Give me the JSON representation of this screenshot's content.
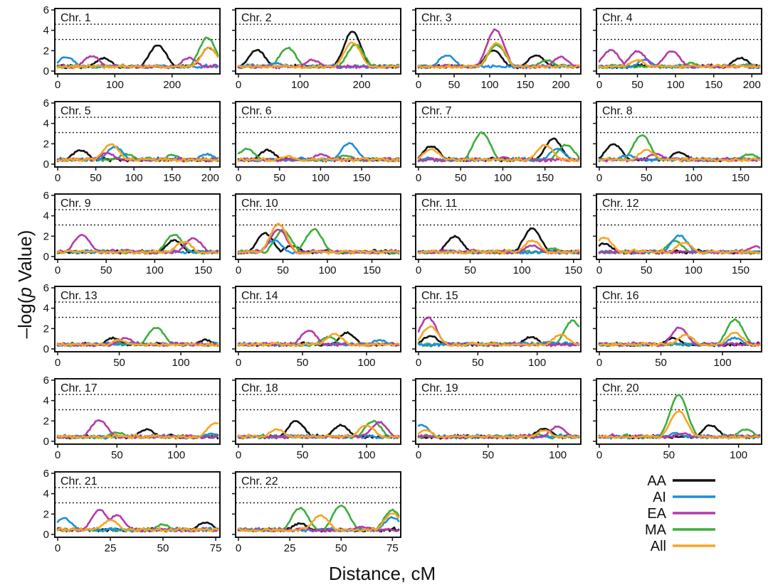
{
  "chart_data": {
    "type": "line",
    "xlabel": "Distance, cM",
    "ylabel_prefix": "–log(",
    "ylabel_italic": "p",
    "ylabel_suffix": " Value)",
    "yticks": [
      0,
      2,
      4,
      6
    ],
    "ylim": [
      0,
      6
    ],
    "thresholds": [
      3.1,
      4.6
    ],
    "legend_position": "bottom-right",
    "series_meta": [
      {
        "name": "AA",
        "color": "#111111"
      },
      {
        "name": "AI",
        "color": "#1e8fd8"
      },
      {
        "name": "EA",
        "color": "#b43aaa"
      },
      {
        "name": "MA",
        "color": "#3cae3c"
      },
      {
        "name": "All",
        "color": "#f5a623"
      }
    ],
    "panels": [
      {
        "title": "Chr. 1",
        "xmax": 280,
        "xticks": [
          0,
          100,
          200
        ],
        "peaks": {
          "AA": [
            [
              80,
              1.2
            ],
            [
              175,
              2.5
            ],
            [
              265,
              2.2
            ]
          ],
          "AI": [
            [
              15,
              1.3
            ]
          ],
          "EA": [
            [
              60,
              1.4
            ],
            [
              230,
              1.2
            ]
          ],
          "MA": [
            [
              262,
              3.2
            ]
          ],
          "All": [
            [
              265,
              2.2
            ]
          ]
        }
      },
      {
        "title": "Chr. 2",
        "xmax": 260,
        "xticks": [
          0,
          100,
          200
        ],
        "peaks": {
          "AA": [
            [
              30,
              2.0
            ],
            [
              185,
              3.8
            ]
          ],
          "AI": [
            [
              60,
              0.7
            ]
          ],
          "EA": [
            [
              120,
              1.0
            ]
          ],
          "MA": [
            [
              80,
              2.2
            ],
            [
              190,
              2.5
            ]
          ],
          "All": [
            [
              185,
              2.7
            ]
          ]
        }
      },
      {
        "title": "Chr. 3",
        "xmax": 225,
        "xticks": [
          0,
          50,
          100,
          150,
          200
        ],
        "peaks": {
          "AA": [
            [
              105,
              2.0
            ],
            [
              165,
              1.5
            ]
          ],
          "AI": [
            [
              40,
              1.5
            ]
          ],
          "EA": [
            [
              108,
              4.0
            ],
            [
              200,
              1.3
            ]
          ],
          "MA": [
            [
              110,
              2.5
            ],
            [
              180,
              1.0
            ]
          ],
          "All": [
            [
              110,
              2.7
            ]
          ]
        }
      },
      {
        "title": "Chr. 4",
        "xmax": 210,
        "xticks": [
          0,
          50,
          100,
          150,
          200
        ],
        "peaks": {
          "AA": [
            [
              185,
              1.2
            ]
          ],
          "AI": [
            [
              60,
              1.0
            ]
          ],
          "EA": [
            [
              15,
              2.0
            ],
            [
              50,
              1.9
            ],
            [
              95,
              1.9
            ]
          ],
          "MA": [
            [
              120,
              0.7
            ]
          ],
          "All": [
            [
              50,
              1.0
            ]
          ]
        }
      },
      {
        "title": "Chr. 5",
        "xmax": 210,
        "xticks": [
          0,
          50,
          100,
          150,
          200
        ],
        "peaks": {
          "AA": [
            [
              30,
              1.3
            ]
          ],
          "AI": [
            [
              75,
              1.6
            ],
            [
              195,
              0.9
            ]
          ],
          "EA": [
            [
              65,
              1.0
            ]
          ],
          "MA": [
            [
              90,
              0.9
            ],
            [
              150,
              0.8
            ]
          ],
          "All": [
            [
              70,
              1.9
            ]
          ]
        }
      },
      {
        "title": "Chr. 6",
        "xmax": 195,
        "xticks": [
          0,
          50,
          100,
          150
        ],
        "peaks": {
          "AA": [
            [
              35,
              1.3
            ]
          ],
          "AI": [
            [
              135,
              2.0
            ]
          ],
          "EA": [
            [
              100,
              0.9
            ]
          ],
          "MA": [
            [
              10,
              1.4
            ],
            [
              130,
              0.8
            ]
          ],
          "All": [
            [
              60,
              0.7
            ]
          ]
        }
      },
      {
        "title": "Chr. 7",
        "xmax": 190,
        "xticks": [
          0,
          50,
          100,
          150
        ],
        "peaks": {
          "AA": [
            [
              15,
              1.7
            ],
            [
              160,
              2.4
            ]
          ],
          "AI": [
            [
              165,
              1.4
            ]
          ],
          "EA": [
            [
              100,
              0.6
            ]
          ],
          "MA": [
            [
              75,
              3.0
            ],
            [
              175,
              1.8
            ]
          ],
          "All": [
            [
              15,
              1.4
            ],
            [
              150,
              1.8
            ]
          ]
        }
      },
      {
        "title": "Chr. 8",
        "xmax": 170,
        "xticks": [
          0,
          50,
          100,
          150
        ],
        "peaks": {
          "AA": [
            [
              15,
              1.9
            ],
            [
              85,
              1.1
            ]
          ],
          "AI": [
            [
              30,
              0.8
            ]
          ],
          "EA": [
            [
              60,
              0.9
            ]
          ],
          "MA": [
            [
              45,
              2.8
            ],
            [
              160,
              0.9
            ]
          ],
          "All": [
            [
              50,
              1.3
            ]
          ]
        }
      },
      {
        "title": "Chr. 9",
        "xmax": 165,
        "xticks": [
          0,
          50,
          100,
          150
        ],
        "peaks": {
          "AA": [
            [
              120,
              1.5
            ]
          ],
          "AI": [
            [
              70,
              0.6
            ]
          ],
          "EA": [
            [
              25,
              2.0
            ],
            [
              140,
              1.7
            ]
          ],
          "MA": [
            [
              120,
              2.1
            ]
          ],
          "All": [
            [
              130,
              1.4
            ]
          ]
        }
      },
      {
        "title": "Chr. 10",
        "xmax": 180,
        "xticks": [
          0,
          50,
          100,
          150
        ],
        "peaks": {
          "AA": [
            [
              30,
              2.2
            ],
            [
              60,
              1.0
            ]
          ],
          "AI": [
            [
              40,
              1.5
            ]
          ],
          "EA": [
            [
              45,
              2.6
            ]
          ],
          "MA": [
            [
              50,
              2.5
            ],
            [
              85,
              2.6
            ]
          ],
          "All": [
            [
              45,
              3.1
            ]
          ]
        }
      },
      {
        "title": "Chr. 11",
        "xmax": 155,
        "xticks": [
          0,
          50,
          100,
          150
        ],
        "peaks": {
          "AA": [
            [
              35,
              1.9
            ],
            [
              110,
              2.7
            ]
          ],
          "AI": [
            [
              30,
              0.5
            ]
          ],
          "EA": [
            [
              110,
              1.0
            ]
          ],
          "MA": [
            [
              130,
              0.7
            ]
          ],
          "All": [
            [
              110,
              1.5
            ]
          ]
        }
      },
      {
        "title": "Chr. 12",
        "xmax": 170,
        "xticks": [
          0,
          50,
          100,
          150
        ],
        "peaks": {
          "AA": [
            [
              5,
              1.2
            ]
          ],
          "AI": [
            [
              85,
              2.0
            ]
          ],
          "EA": [
            [
              165,
              0.9
            ]
          ],
          "MA": [
            [
              80,
              1.4
            ]
          ],
          "All": [
            [
              5,
              1.8
            ],
            [
              90,
              1.3
            ]
          ]
        }
      },
      {
        "title": "Chr. 13",
        "xmax": 130,
        "xticks": [
          0,
          50,
          100
        ],
        "peaks": {
          "AA": [
            [
              45,
              1.0
            ],
            [
              120,
              0.8
            ]
          ],
          "AI": [
            [
              60,
              0.5
            ]
          ],
          "EA": [
            [
              55,
              1.0
            ]
          ],
          "MA": [
            [
              80,
              2.0
            ]
          ],
          "All": [
            [
              50,
              0.8
            ]
          ]
        }
      },
      {
        "title": "Chr. 14",
        "xmax": 125,
        "xticks": [
          0,
          50,
          100
        ],
        "peaks": {
          "AA": [
            [
              85,
              1.5
            ]
          ],
          "AI": [
            [
              110,
              0.8
            ]
          ],
          "EA": [
            [
              55,
              1.7
            ]
          ],
          "MA": [
            [
              70,
              1.1
            ]
          ],
          "All": [
            [
              75,
              1.4
            ]
          ]
        }
      },
      {
        "title": "Chr. 15",
        "xmax": 135,
        "xticks": [
          0,
          50,
          100
        ],
        "peaks": {
          "AA": [
            [
              10,
              1.2
            ],
            [
              95,
              1.1
            ]
          ],
          "AI": [
            [
              110,
              0.6
            ]
          ],
          "EA": [
            [
              8,
              3.0
            ]
          ],
          "MA": [
            [
              130,
              2.7
            ]
          ],
          "All": [
            [
              10,
              2.1
            ],
            [
              120,
              1.3
            ]
          ]
        }
      },
      {
        "title": "Chr. 16",
        "xmax": 130,
        "xticks": [
          0,
          50,
          100
        ],
        "peaks": {
          "AA": [
            [
              60,
              1.0
            ]
          ],
          "AI": [
            [
              110,
              1.0
            ]
          ],
          "EA": [
            [
              65,
              2.0
            ]
          ],
          "MA": [
            [
              110,
              2.8
            ]
          ],
          "All": [
            [
              70,
              1.3
            ],
            [
              110,
              1.5
            ]
          ]
        }
      },
      {
        "title": "Chr. 17",
        "xmax": 135,
        "xticks": [
          0,
          50,
          100
        ],
        "peaks": {
          "AA": [
            [
              75,
              1.1
            ]
          ],
          "AI": [
            [
              130,
              0.7
            ]
          ],
          "EA": [
            [
              35,
              2.0
            ]
          ],
          "MA": [
            [
              50,
              0.8
            ]
          ],
          "All": [
            [
              133,
              1.7
            ]
          ]
        }
      },
      {
        "title": "Chr. 18",
        "xmax": 125,
        "xticks": [
          0,
          50,
          100
        ],
        "peaks": {
          "AA": [
            [
              45,
              1.9
            ],
            [
              80,
              1.5
            ]
          ],
          "AI": [
            [
              40,
              0.5
            ]
          ],
          "EA": [
            [
              110,
              1.8
            ]
          ],
          "MA": [
            [
              105,
              1.9
            ]
          ],
          "All": [
            [
              30,
              1.1
            ],
            [
              100,
              1.5
            ]
          ]
        }
      },
      {
        "title": "Chr. 19",
        "xmax": 115,
        "xticks": [
          0,
          50,
          100
        ],
        "peaks": {
          "AA": [
            [
              90,
              1.2
            ]
          ],
          "AI": [
            [
              2,
              1.5
            ]
          ],
          "EA": [
            [
              100,
              1.4
            ]
          ],
          "MA": [
            [
              85,
              0.6
            ]
          ],
          "All": [
            [
              5,
              1.0
            ],
            [
              90,
              1.0
            ]
          ]
        }
      },
      {
        "title": "Chr. 20",
        "xmax": 115,
        "xticks": [
          0,
          50,
          100
        ],
        "peaks": {
          "AA": [
            [
              80,
              1.5
            ]
          ],
          "AI": [
            [
              55,
              0.7
            ]
          ],
          "EA": [
            [
              60,
              0.7
            ]
          ],
          "MA": [
            [
              57,
              4.5
            ],
            [
              105,
              1.1
            ]
          ],
          "All": [
            [
              57,
              2.9
            ]
          ]
        }
      },
      {
        "title": "Chr. 21",
        "xmax": 76,
        "xticks": [
          0,
          25,
          50,
          75
        ],
        "peaks": {
          "AA": [
            [
              70,
              1.1
            ]
          ],
          "AI": [
            [
              3,
              1.5
            ]
          ],
          "EA": [
            [
              20,
              2.3
            ],
            [
              28,
              1.8
            ]
          ],
          "MA": [
            [
              50,
              0.9
            ]
          ],
          "All": [
            [
              25,
              1.3
            ]
          ]
        }
      },
      {
        "title": "Chr. 22",
        "xmax": 78,
        "xticks": [
          0,
          25,
          50,
          75
        ],
        "peaks": {
          "AA": [
            [
              30,
              1.0
            ]
          ],
          "AI": [
            [
              75,
              1.6
            ]
          ],
          "EA": [
            [
              60,
              0.7
            ]
          ],
          "MA": [
            [
              30,
              2.5
            ],
            [
              50,
              2.8
            ],
            [
              75,
              2.3
            ]
          ],
          "All": [
            [
              40,
              1.8
            ],
            [
              75,
              2.0
            ]
          ]
        }
      }
    ]
  }
}
